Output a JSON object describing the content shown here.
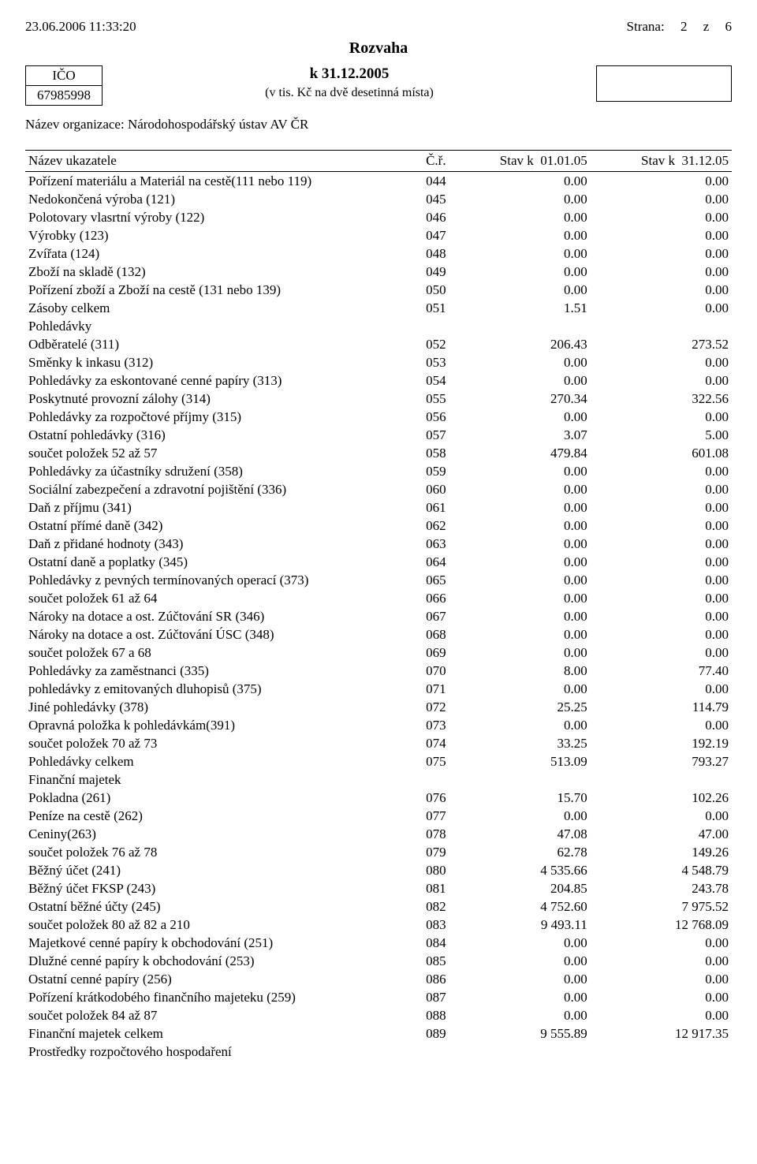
{
  "header": {
    "timestamp": "23.06.2006 11:33:20",
    "strana_label": "Strana:",
    "strana_num": "2",
    "z_label": "z",
    "total_pages": "6"
  },
  "title": "Rozvaha",
  "left_box": {
    "ico_label": "IČO",
    "ico_value": "67985998"
  },
  "center": {
    "asof_label": "k",
    "asof_date": "31.12.2005",
    "units": "(v tis. Kč na dvě desetinná místa)"
  },
  "org_label": "Název organizace:",
  "org_name": "Národohospodářský ústav AV ČR",
  "table_head": {
    "name": "Název ukazatele",
    "cr": "Č.ř.",
    "col1_label": "Stav k",
    "col1_date": "01.01.05",
    "col2_label": "Stav k",
    "col2_date": "31.12.05"
  },
  "rows": [
    {
      "name": "Pořízení materiálu a Materiál na cestě(111 nebo 119)",
      "cr": "044",
      "v1": "0.00",
      "v2": "0.00"
    },
    {
      "name": "Nedokončená výroba (121)",
      "cr": "045",
      "v1": "0.00",
      "v2": "0.00"
    },
    {
      "name": "Polotovary vlasrtní výroby (122)",
      "cr": "046",
      "v1": "0.00",
      "v2": "0.00"
    },
    {
      "name": "Výrobky (123)",
      "cr": "047",
      "v1": "0.00",
      "v2": "0.00"
    },
    {
      "name": "Zvířata (124)",
      "cr": "048",
      "v1": "0.00",
      "v2": "0.00"
    },
    {
      "name": "Zboží na skladě (132)",
      "cr": "049",
      "v1": "0.00",
      "v2": "0.00"
    },
    {
      "name": "Pořízení zboží a Zboží na cestě (131 nebo 139)",
      "cr": "050",
      "v1": "0.00",
      "v2": "0.00"
    },
    {
      "name": "Zásoby celkem",
      "cr": "051",
      "v1": "1.51",
      "v2": "0.00"
    },
    {
      "name": "Pohledávky",
      "section": true
    },
    {
      "name": "Odběratelé (311)",
      "cr": "052",
      "v1": "206.43",
      "v2": "273.52"
    },
    {
      "name": "Směnky k inkasu (312)",
      "cr": "053",
      "v1": "0.00",
      "v2": "0.00"
    },
    {
      "name": "Pohledávky za eskontované cenné papíry (313)",
      "cr": "054",
      "v1": "0.00",
      "v2": "0.00"
    },
    {
      "name": "Poskytnuté provozní zálohy (314)",
      "cr": "055",
      "v1": "270.34",
      "v2": "322.56"
    },
    {
      "name": "Pohledávky za rozpočtové příjmy (315)",
      "cr": "056",
      "v1": "0.00",
      "v2": "0.00"
    },
    {
      "name": "Ostatní pohledávky (316)",
      "cr": "057",
      "v1": "3.07",
      "v2": "5.00"
    },
    {
      "name": "součet položek 52 až 57",
      "cr": "058",
      "v1": "479.84",
      "v2": "601.08"
    },
    {
      "name": "Pohledávky za účastníky sdružení (358)",
      "cr": "059",
      "v1": "0.00",
      "v2": "0.00"
    },
    {
      "name": "Sociální zabezpečení a zdravotní pojištění (336)",
      "cr": "060",
      "v1": "0.00",
      "v2": "0.00"
    },
    {
      "name": "Daň z příjmu (341)",
      "cr": "061",
      "v1": "0.00",
      "v2": "0.00"
    },
    {
      "name": "Ostatní přímé daně (342)",
      "cr": "062",
      "v1": "0.00",
      "v2": "0.00"
    },
    {
      "name": "Daň z přidané hodnoty (343)",
      "cr": "063",
      "v1": "0.00",
      "v2": "0.00"
    },
    {
      "name": "Ostatní daně a poplatky (345)",
      "cr": "064",
      "v1": "0.00",
      "v2": "0.00"
    },
    {
      "name": "Pohledávky z pevných termínovaných operací (373)",
      "cr": "065",
      "v1": "0.00",
      "v2": "0.00"
    },
    {
      "name": "součet položek 61 až 64",
      "cr": "066",
      "v1": "0.00",
      "v2": "0.00"
    },
    {
      "name": "Nároky na dotace a ost. Zúčtování SR (346)",
      "cr": "067",
      "v1": "0.00",
      "v2": "0.00"
    },
    {
      "name": "Nároky na dotace a ost. Zúčtování ÚSC (348)",
      "cr": "068",
      "v1": "0.00",
      "v2": "0.00"
    },
    {
      "name": "součet položek 67 a 68",
      "cr": "069",
      "v1": "0.00",
      "v2": "0.00"
    },
    {
      "name": "Pohledávky za zaměstnanci (335)",
      "cr": "070",
      "v1": "8.00",
      "v2": "77.40"
    },
    {
      "name": "pohledávky z emitovaných dluhopisů (375)",
      "cr": "071",
      "v1": "0.00",
      "v2": "0.00"
    },
    {
      "name": "Jiné pohledávky (378)",
      "cr": "072",
      "v1": "25.25",
      "v2": "114.79"
    },
    {
      "name": "Opravná položka k pohledávkám(391)",
      "cr": "073",
      "v1": "0.00",
      "v2": "0.00"
    },
    {
      "name": "součet položek 70 až 73",
      "cr": "074",
      "v1": "33.25",
      "v2": "192.19"
    },
    {
      "name": "Pohledávky celkem",
      "cr": "075",
      "v1": "513.09",
      "v2": "793.27"
    },
    {
      "name": "Finanční majetek",
      "section": true
    },
    {
      "name": "Pokladna (261)",
      "cr": "076",
      "v1": "15.70",
      "v2": "102.26"
    },
    {
      "name": "Peníze na cestě (262)",
      "cr": "077",
      "v1": "0.00",
      "v2": "0.00"
    },
    {
      "name": "Ceniny(263)",
      "cr": "078",
      "v1": "47.08",
      "v2": "47.00"
    },
    {
      "name": "součet položek 76 až 78",
      "cr": "079",
      "v1": "62.78",
      "v2": "149.26"
    },
    {
      "name": "Běžný účet (241)",
      "cr": "080",
      "v1": "4 535.66",
      "v2": "4 548.79"
    },
    {
      "name": "Běžný účet FKSP (243)",
      "cr": "081",
      "v1": "204.85",
      "v2": "243.78"
    },
    {
      "name": "Ostatní běžné účty (245)",
      "cr": "082",
      "v1": "4 752.60",
      "v2": "7 975.52"
    },
    {
      "name": "součet položek 80 až 82 a 210",
      "cr": "083",
      "v1": "9 493.11",
      "v2": "12 768.09"
    },
    {
      "name": "Majetkové cenné papíry k obchodování (251)",
      "cr": "084",
      "v1": "0.00",
      "v2": "0.00"
    },
    {
      "name": "Dlužné cenné papíry k obchodování (253)",
      "cr": "085",
      "v1": "0.00",
      "v2": "0.00"
    },
    {
      "name": "Ostatní cenné papíry (256)",
      "cr": "086",
      "v1": "0.00",
      "v2": "0.00"
    },
    {
      "name": "Pořízení krátkodobého finančního majeteku (259)",
      "cr": "087",
      "v1": "0.00",
      "v2": "0.00"
    },
    {
      "name": "součet položek 84 až 87",
      "cr": "088",
      "v1": "0.00",
      "v2": "0.00"
    },
    {
      "name": "Finanční majetek celkem",
      "cr": "089",
      "v1": "9 555.89",
      "v2": "12 917.35"
    },
    {
      "name": "Prostředky rozpočtového hospodaření",
      "section": true
    }
  ]
}
